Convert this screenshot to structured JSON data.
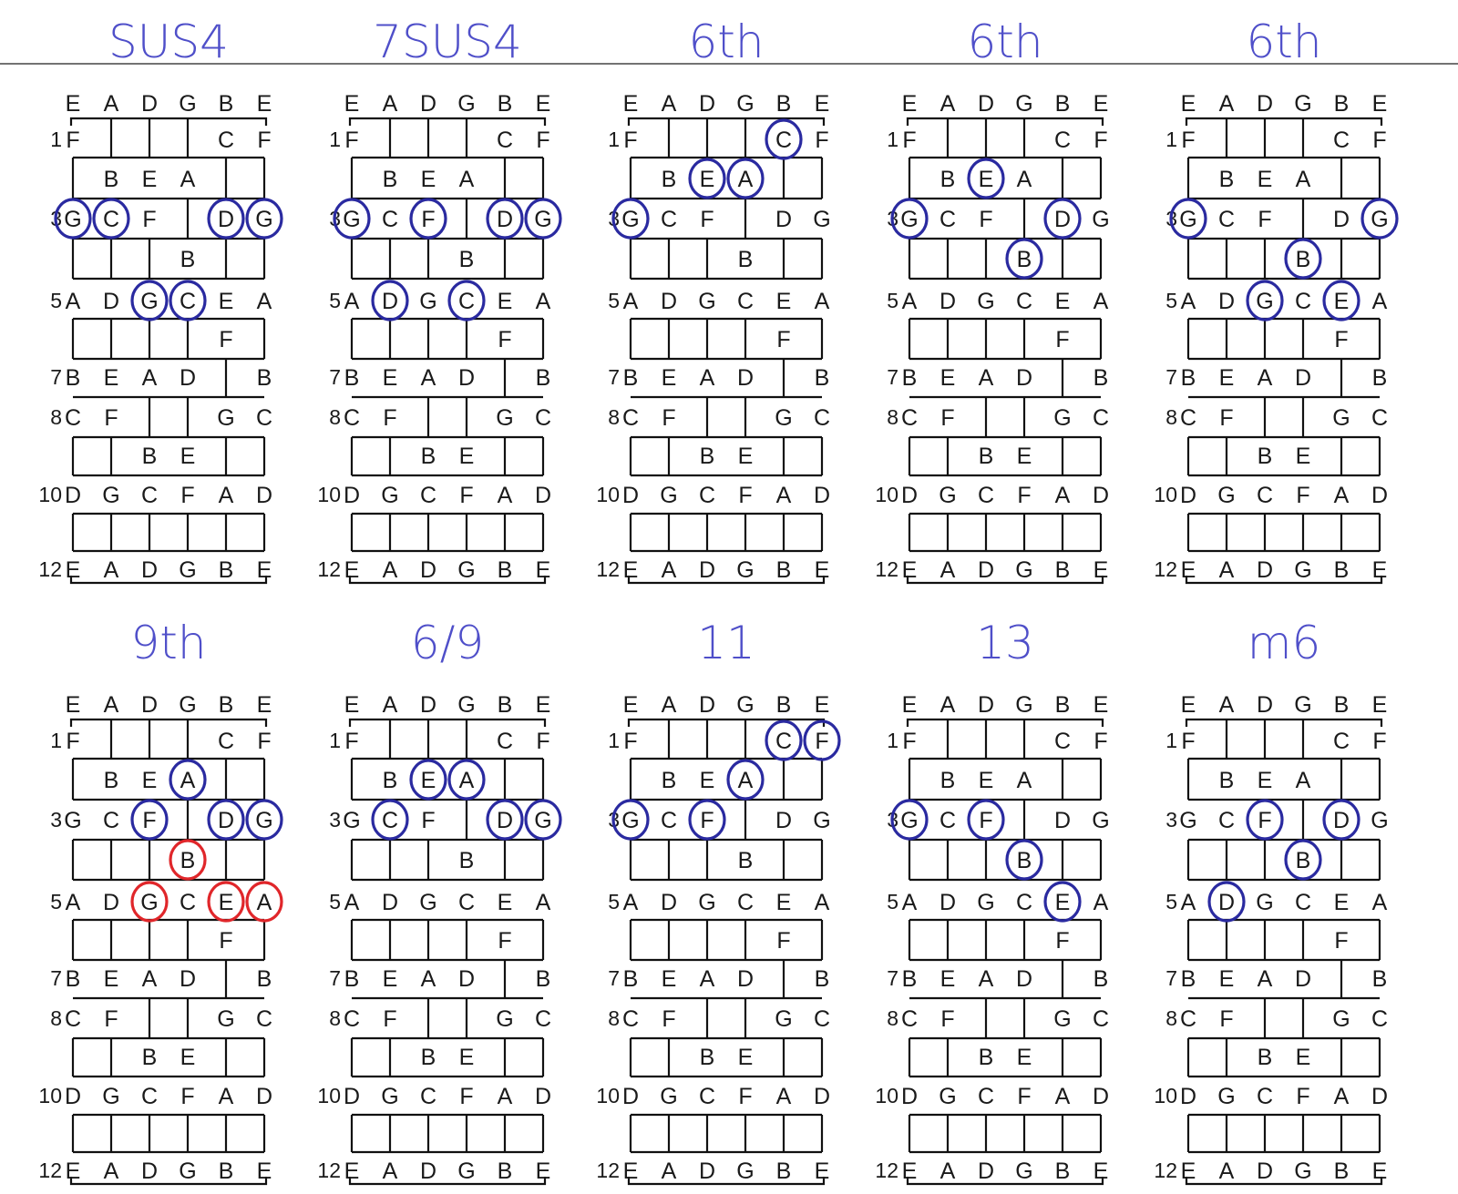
{
  "strings": [
    "E",
    "A",
    "D",
    "G",
    "B",
    "E"
  ],
  "colors": {
    "title": "#4f4fc9",
    "circle_blue": "#2a2aa0",
    "circle_red": "#e0262a"
  },
  "fret_numbers": [
    {
      "fret": 1,
      "label": "1"
    },
    {
      "fret": 3,
      "label": "3"
    },
    {
      "fret": 5,
      "label": "5"
    },
    {
      "fret": 7,
      "label": "7"
    },
    {
      "fret": 8,
      "label": "8"
    },
    {
      "fret": 10,
      "label": "10"
    },
    {
      "fret": 12,
      "label": "12"
    }
  ],
  "notes": [
    {
      "s": 0,
      "f": 1,
      "n": "F"
    },
    {
      "s": 4,
      "f": 1,
      "n": "C"
    },
    {
      "s": 5,
      "f": 1,
      "n": "F"
    },
    {
      "s": 1,
      "f": 2,
      "n": "B"
    },
    {
      "s": 2,
      "f": 2,
      "n": "E"
    },
    {
      "s": 3,
      "f": 2,
      "n": "A"
    },
    {
      "s": 0,
      "f": 3,
      "n": "G"
    },
    {
      "s": 1,
      "f": 3,
      "n": "C"
    },
    {
      "s": 2,
      "f": 3,
      "n": "F"
    },
    {
      "s": 4,
      "f": 3,
      "n": "D"
    },
    {
      "s": 5,
      "f": 3,
      "n": "G"
    },
    {
      "s": 3,
      "f": 4,
      "n": "B"
    },
    {
      "s": 0,
      "f": 5,
      "n": "A"
    },
    {
      "s": 1,
      "f": 5,
      "n": "D"
    },
    {
      "s": 2,
      "f": 5,
      "n": "G"
    },
    {
      "s": 3,
      "f": 5,
      "n": "C"
    },
    {
      "s": 4,
      "f": 5,
      "n": "E"
    },
    {
      "s": 5,
      "f": 5,
      "n": "A"
    },
    {
      "s": 4,
      "f": 6,
      "n": "F"
    },
    {
      "s": 0,
      "f": 7,
      "n": "B"
    },
    {
      "s": 1,
      "f": 7,
      "n": "E"
    },
    {
      "s": 2,
      "f": 7,
      "n": "A"
    },
    {
      "s": 3,
      "f": 7,
      "n": "D"
    },
    {
      "s": 5,
      "f": 7,
      "n": "B"
    },
    {
      "s": 0,
      "f": 8,
      "n": "C"
    },
    {
      "s": 1,
      "f": 8,
      "n": "F"
    },
    {
      "s": 4,
      "f": 8,
      "n": "G"
    },
    {
      "s": 5,
      "f": 8,
      "n": "C"
    },
    {
      "s": 2,
      "f": 9,
      "n": "B"
    },
    {
      "s": 3,
      "f": 9,
      "n": "E"
    },
    {
      "s": 0,
      "f": 10,
      "n": "D"
    },
    {
      "s": 1,
      "f": 10,
      "n": "G"
    },
    {
      "s": 2,
      "f": 10,
      "n": "C"
    },
    {
      "s": 3,
      "f": 10,
      "n": "F"
    },
    {
      "s": 4,
      "f": 10,
      "n": "A"
    },
    {
      "s": 5,
      "f": 10,
      "n": "D"
    },
    {
      "s": 0,
      "f": 12,
      "n": "E"
    },
    {
      "s": 1,
      "f": 12,
      "n": "A"
    },
    {
      "s": 2,
      "f": 12,
      "n": "D"
    },
    {
      "s": 3,
      "f": 12,
      "n": "G"
    },
    {
      "s": 4,
      "f": 12,
      "n": "B"
    },
    {
      "s": 5,
      "f": 12,
      "n": "E"
    }
  ],
  "diagrams": [
    {
      "title": "SUS4",
      "circles": [
        {
          "s": 0,
          "f": 3,
          "c": "blue"
        },
        {
          "s": 1,
          "f": 3,
          "c": "blue"
        },
        {
          "s": 4,
          "f": 3,
          "c": "blue"
        },
        {
          "s": 5,
          "f": 3,
          "c": "blue"
        },
        {
          "s": 2,
          "f": 5,
          "c": "blue"
        },
        {
          "s": 3,
          "f": 5,
          "c": "blue"
        }
      ]
    },
    {
      "title": "7SUS4",
      "circles": [
        {
          "s": 0,
          "f": 3,
          "c": "blue"
        },
        {
          "s": 2,
          "f": 3,
          "c": "blue"
        },
        {
          "s": 4,
          "f": 3,
          "c": "blue"
        },
        {
          "s": 5,
          "f": 3,
          "c": "blue"
        },
        {
          "s": 1,
          "f": 5,
          "c": "blue"
        },
        {
          "s": 3,
          "f": 5,
          "c": "blue"
        }
      ]
    },
    {
      "title": "6th",
      "circles": [
        {
          "s": 4,
          "f": 1,
          "c": "blue"
        },
        {
          "s": 2,
          "f": 2,
          "c": "blue"
        },
        {
          "s": 3,
          "f": 2,
          "c": "blue"
        },
        {
          "s": 0,
          "f": 3,
          "c": "blue"
        }
      ]
    },
    {
      "title": "6th",
      "circles": [
        {
          "s": 2,
          "f": 2,
          "c": "blue"
        },
        {
          "s": 0,
          "f": 3,
          "c": "blue"
        },
        {
          "s": 4,
          "f": 3,
          "c": "blue"
        },
        {
          "s": 3,
          "f": 4,
          "c": "blue"
        }
      ]
    },
    {
      "title": "6th",
      "circles": [
        {
          "s": 0,
          "f": 3,
          "c": "blue"
        },
        {
          "s": 5,
          "f": 3,
          "c": "blue"
        },
        {
          "s": 3,
          "f": 4,
          "c": "blue"
        },
        {
          "s": 2,
          "f": 5,
          "c": "blue"
        },
        {
          "s": 4,
          "f": 5,
          "c": "blue"
        }
      ]
    },
    {
      "title": "9th",
      "circles": [
        {
          "s": 3,
          "f": 2,
          "c": "blue"
        },
        {
          "s": 2,
          "f": 3,
          "c": "blue"
        },
        {
          "s": 4,
          "f": 3,
          "c": "blue"
        },
        {
          "s": 5,
          "f": 3,
          "c": "blue"
        },
        {
          "s": 3,
          "f": 4,
          "c": "red"
        },
        {
          "s": 2,
          "f": 5,
          "c": "red"
        },
        {
          "s": 4,
          "f": 5,
          "c": "red"
        },
        {
          "s": 5,
          "f": 5,
          "c": "red"
        }
      ]
    },
    {
      "title": "6/9",
      "circles": [
        {
          "s": 2,
          "f": 2,
          "c": "blue"
        },
        {
          "s": 3,
          "f": 2,
          "c": "blue"
        },
        {
          "s": 1,
          "f": 3,
          "c": "blue"
        },
        {
          "s": 4,
          "f": 3,
          "c": "blue"
        },
        {
          "s": 5,
          "f": 3,
          "c": "blue"
        }
      ]
    },
    {
      "title": "11",
      "circles": [
        {
          "s": 4,
          "f": 1,
          "c": "blue"
        },
        {
          "s": 5,
          "f": 1,
          "c": "blue"
        },
        {
          "s": 3,
          "f": 2,
          "c": "blue"
        },
        {
          "s": 0,
          "f": 3,
          "c": "blue"
        },
        {
          "s": 2,
          "f": 3,
          "c": "blue"
        }
      ]
    },
    {
      "title": "13",
      "circles": [
        {
          "s": 0,
          "f": 3,
          "c": "blue"
        },
        {
          "s": 2,
          "f": 3,
          "c": "blue"
        },
        {
          "s": 3,
          "f": 4,
          "c": "blue"
        },
        {
          "s": 4,
          "f": 5,
          "c": "blue"
        }
      ]
    },
    {
      "title": "m6",
      "circles": [
        {
          "s": 2,
          "f": 3,
          "c": "blue"
        },
        {
          "s": 4,
          "f": 3,
          "c": "blue"
        },
        {
          "s": 3,
          "f": 4,
          "c": "blue"
        },
        {
          "s": 1,
          "f": 5,
          "c": "blue"
        }
      ]
    }
  ]
}
